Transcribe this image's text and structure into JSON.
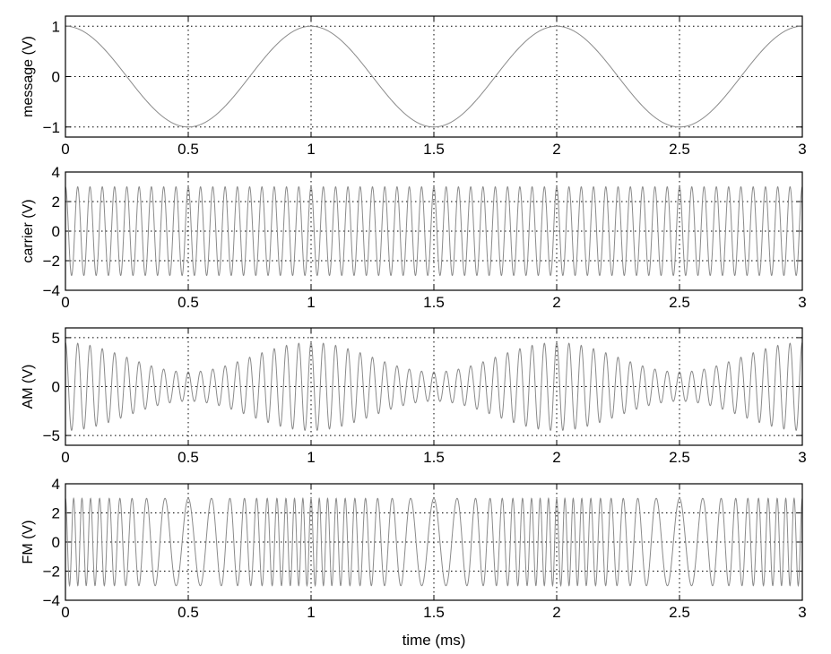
{
  "chart_data": [
    {
      "type": "line",
      "ylabel": "message (V)",
      "xlabel": "",
      "xlim": [
        0,
        3
      ],
      "ylim": [
        -1.2,
        1.2
      ],
      "xticks": [
        "0",
        "0.5",
        "1",
        "1.5",
        "2",
        "2.5",
        "3"
      ],
      "yticks": [
        {
          "value": -1,
          "label": "−1"
        },
        {
          "value": 0,
          "label": "0"
        },
        {
          "value": 1,
          "label": "1"
        }
      ],
      "grid": true,
      "series": [
        {
          "signal": "cos",
          "amplitude": 1,
          "frequency_khz": 1
        }
      ]
    },
    {
      "type": "line",
      "ylabel": "carrier (V)",
      "xlabel": "",
      "xlim": [
        0,
        3
      ],
      "ylim": [
        -4,
        4
      ],
      "xticks": [
        "0",
        "0.5",
        "1",
        "1.5",
        "2",
        "2.5",
        "3"
      ],
      "yticks": [
        {
          "value": -4,
          "label": "−4"
        },
        {
          "value": -2,
          "label": "−2"
        },
        {
          "value": 0,
          "label": "0"
        },
        {
          "value": 2,
          "label": "2"
        },
        {
          "value": 4,
          "label": "4"
        }
      ],
      "grid": true,
      "series": [
        {
          "signal": "cos",
          "amplitude": 3,
          "frequency_khz": 20
        }
      ]
    },
    {
      "type": "line",
      "ylabel": "AM (V)",
      "xlabel": "",
      "xlim": [
        0,
        3
      ],
      "ylim": [
        -6,
        6
      ],
      "xticks": [
        "0",
        "0.5",
        "1",
        "1.5",
        "2",
        "2.5",
        "3"
      ],
      "yticks": [
        {
          "value": -5,
          "label": "−5"
        },
        {
          "value": 0,
          "label": "0"
        },
        {
          "value": 5,
          "label": "5"
        }
      ],
      "grid": true,
      "series": [
        {
          "signal": "am",
          "carrier_amplitude": 3,
          "carrier_frequency_khz": 20,
          "message_amplitude": 1.5,
          "message_frequency_khz": 1
        }
      ]
    },
    {
      "type": "line",
      "ylabel": "FM (V)",
      "xlabel": "time (ms)",
      "xlim": [
        0,
        3
      ],
      "ylim": [
        -4,
        4
      ],
      "xticks": [
        "0",
        "0.5",
        "1",
        "1.5",
        "2",
        "2.5",
        "3"
      ],
      "yticks": [
        {
          "value": -4,
          "label": "−4"
        },
        {
          "value": -2,
          "label": "−2"
        },
        {
          "value": 0,
          "label": "0"
        },
        {
          "value": 2,
          "label": "2"
        },
        {
          "value": 4,
          "label": "4"
        }
      ],
      "grid": true,
      "series": [
        {
          "signal": "fm",
          "amplitude": 3,
          "carrier_frequency_khz": 20,
          "frequency_deviation_khz": 10,
          "message_frequency_khz": 1
        }
      ]
    }
  ]
}
